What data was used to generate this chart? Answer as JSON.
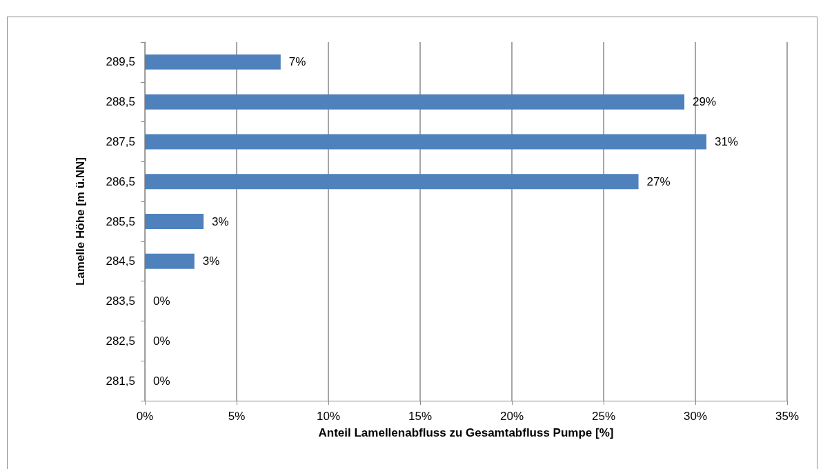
{
  "chart_data": {
    "type": "bar",
    "orientation": "horizontal",
    "xlabel": "Anteil Lamellenabfluss zu Gesamtabfluss Pumpe [%]",
    "ylabel": "Lamelle Höhe [m ü.NN]",
    "categories": [
      "289,5",
      "288,5",
      "287,5",
      "286,5",
      "285,5",
      "284,5",
      "283,5",
      "282,5",
      "281,5"
    ],
    "series": [
      {
        "color": "#4f81bd",
        "values": [
          7.4,
          29.4,
          30.6,
          26.9,
          3.2,
          2.7,
          0,
          0,
          0
        ],
        "value_labels": [
          "7%",
          "29%",
          "31%",
          "27%",
          "3%",
          "3%",
          "0%",
          "0%",
          "0%"
        ]
      }
    ],
    "xlim": [
      0,
      35
    ],
    "xticks": [
      {
        "value": 0,
        "label": "0%"
      },
      {
        "value": 5,
        "label": "5%"
      },
      {
        "value": 10,
        "label": "10%"
      },
      {
        "value": 15,
        "label": "15%"
      },
      {
        "value": 20,
        "label": "20%"
      },
      {
        "value": 25,
        "label": "25%"
      },
      {
        "value": 30,
        "label": "30%"
      },
      {
        "value": 35,
        "label": "35%"
      }
    ],
    "grid": "x"
  }
}
